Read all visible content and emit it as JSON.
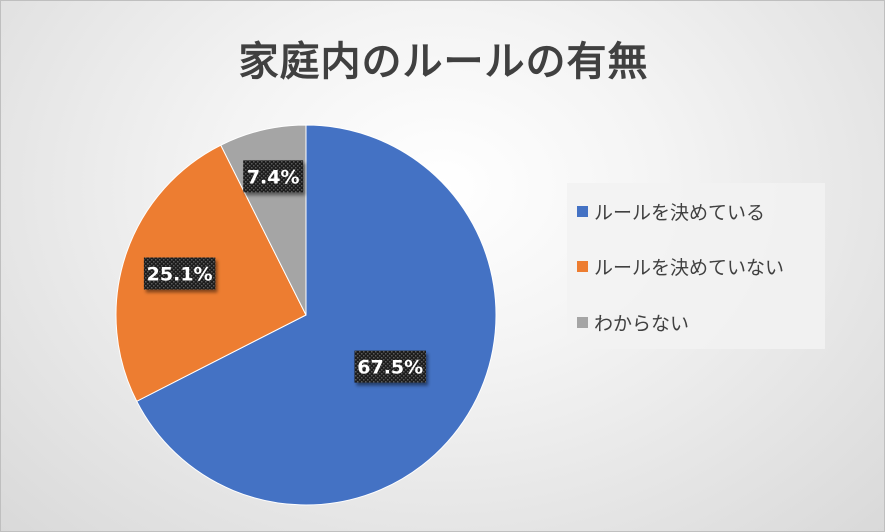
{
  "chart_data": {
    "type": "pie",
    "title": "家庭内のルールの有無",
    "categories": [
      "ルールを決めている",
      "ルールを決めていない",
      "わからない"
    ],
    "values": [
      67.5,
      25.1,
      7.4
    ],
    "data_labels": [
      "67.5%",
      "25.1%",
      "7.4%"
    ],
    "colors": [
      "#4472c4",
      "#ed7d31",
      "#a5a5a5"
    ],
    "start_angle": "12-o'clock",
    "direction": "clockwise",
    "legend_position": "right"
  }
}
